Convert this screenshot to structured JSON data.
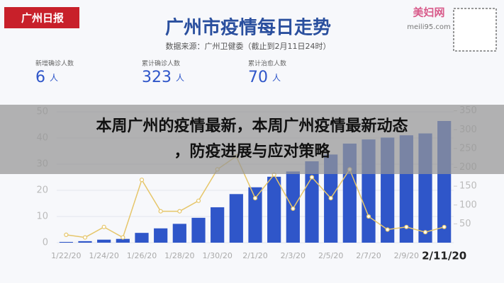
{
  "logo_left": "广州日报",
  "logo_right": "美妇网",
  "logo_right_url": "meili95.com",
  "stats": [
    {
      "label": "新增确诊人数",
      "value": 6,
      "unit": "人"
    },
    {
      "label": "累计确诊人数",
      "value": 323,
      "unit": "人"
    },
    {
      "label": "累计治愈人数",
      "value": 70,
      "unit": "人"
    }
  ],
  "banner": [
    "本周广州的疫情最新，本周广州疫情最新动态",
    "，防疫进展与应对策略"
  ],
  "chart_data": {
    "type": "bar",
    "title": "广州市疫情每日走势",
    "subtitle": "数据来源：广州卫健委（截止到2月11日24时）",
    "categories": [
      "1/22/20",
      null,
      "1/24/20",
      null,
      "1/26/20",
      null,
      "1/28/20",
      null,
      "1/30/20",
      null,
      "2/1/20",
      null,
      "2/3/20",
      null,
      "2/5/20",
      null,
      "2/7/20",
      null,
      "2/9/20",
      null,
      "2/11/20"
    ],
    "series": [
      {
        "name": "累计确诊人数",
        "type": "bar",
        "axis": "y2",
        "color": "#2f56c9",
        "values": [
          2,
          4,
          8,
          10,
          26,
          38,
          50,
          66,
          94,
          129,
          147,
          175,
          189,
          216,
          234,
          263,
          274,
          279,
          285,
          290,
          323
        ]
      },
      {
        "name": "新增确诊人数",
        "type": "line",
        "axis": "y",
        "color": "#e6c66a",
        "values": [
          3,
          2,
          6,
          2,
          24,
          12,
          12,
          16,
          28,
          33,
          17,
          26,
          13,
          25,
          17,
          28,
          10,
          5,
          6,
          4,
          6
        ]
      }
    ],
    "ylim": [
      0,
      50
    ],
    "yticks": [
      0,
      10,
      20,
      30,
      40,
      50
    ],
    "y2lim": [
      0,
      400
    ],
    "y2ticks": [
      50,
      100,
      150,
      200,
      250,
      300,
      350
    ]
  }
}
